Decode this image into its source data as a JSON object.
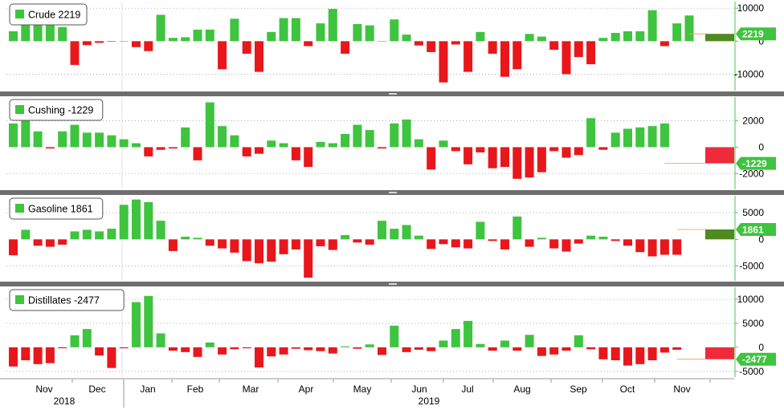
{
  "colors": {
    "positive": "#3ec43e",
    "negative": "#e8171c",
    "positive_current": "#4d8a1f",
    "negative_current": "#ee2b3a",
    "axis": "#4fc44f",
    "separator": "#6e6e6e",
    "grid": "#a0a0a0",
    "text": "#000000"
  },
  "chart_data": [
    {
      "type": "bar",
      "title": "Crude",
      "current_value": 2219,
      "legend": "Crude 2219",
      "yticks": [
        10000,
        0,
        -10000
      ],
      "ylim": [
        -15000,
        12000
      ],
      "values": [
        3000,
        5500,
        5300,
        5000,
        4300,
        -7200,
        -1200,
        -500,
        -100,
        0,
        -1800,
        -3000,
        8000,
        1000,
        1200,
        3500,
        3500,
        -8500,
        6800,
        -3800,
        -9300,
        2800,
        7000,
        7000,
        -1500,
        5400,
        9800,
        -3800,
        5200,
        4800,
        0,
        6600,
        2000,
        -1300,
        -3300,
        -12500,
        -1000,
        -9300,
        2800,
        -3800,
        -10800,
        -8500,
        2200,
        1400,
        -2600,
        -10000,
        -4800,
        -7000,
        1000,
        2500,
        3000,
        3000,
        9400,
        -1500,
        5400,
        7800,
        2219
      ]
    },
    {
      "type": "bar",
      "title": "Cushing",
      "current_value": -1229,
      "legend": "Cushing -1229",
      "yticks": [
        2000,
        0,
        -2000
      ],
      "ylim": [
        -3200,
        3800
      ],
      "values": [
        1800,
        2200,
        1200,
        -100,
        1200,
        1700,
        1100,
        1100,
        900,
        600,
        300,
        -700,
        -200,
        -100,
        1500,
        -1000,
        3400,
        1600,
        900,
        -700,
        -500,
        500,
        300,
        -1000,
        -1500,
        400,
        300,
        1000,
        1700,
        1300,
        -100,
        1800,
        2100,
        600,
        -1700,
        500,
        -300,
        -1300,
        -400,
        -1600,
        -1500,
        -2400,
        -2300,
        -1900,
        -300,
        -800,
        -600,
        2200,
        -200,
        1100,
        1400,
        1500,
        1600,
        1800,
        -1229
      ]
    },
    {
      "type": "bar",
      "title": "Gasoline",
      "current_value": 1861,
      "legend": "Gasoline 1861",
      "yticks": [
        5000,
        0,
        -5000
      ],
      "ylim": [
        -7800,
        8200
      ],
      "values": [
        -3000,
        1800,
        -1200,
        -1400,
        -1000,
        1500,
        1800,
        1500,
        2000,
        6500,
        7500,
        7000,
        3500,
        -2200,
        500,
        300,
        -1200,
        -1700,
        -2500,
        -4100,
        -4500,
        -4200,
        -2800,
        -1900,
        -7200,
        -1300,
        -2000,
        800,
        -600,
        -1000,
        3500,
        2000,
        2700,
        700,
        -1800,
        -900,
        -1500,
        -1700,
        3300,
        -300,
        -1900,
        4300,
        -1400,
        300,
        -1700,
        -2300,
        -800,
        700,
        500,
        -300,
        -1200,
        -2400,
        -3200,
        -2900,
        -2900,
        1861
      ]
    },
    {
      "type": "bar",
      "title": "Distillates",
      "current_value": -2477,
      "legend": "Distillates -2477",
      "yticks": [
        10000,
        5000,
        0,
        -5000
      ],
      "ylim": [
        -6200,
        12500
      ],
      "values": [
        -4000,
        -2700,
        -3500,
        -3300,
        -200,
        2500,
        3800,
        -1700,
        -4300,
        -200,
        9400,
        10700,
        2900,
        -700,
        -1000,
        -2000,
        1000,
        -1500,
        -400,
        -200,
        -4200,
        -1900,
        -1500,
        -300,
        -600,
        -800,
        -1300,
        200,
        -300,
        600,
        -1600,
        4500,
        -1000,
        -500,
        -800,
        1400,
        3800,
        5500,
        700,
        -700,
        1400,
        -700,
        2600,
        -1800,
        -1500,
        -700,
        2500,
        -400,
        -2500,
        -2700,
        -3800,
        -3500,
        -2700,
        -1100,
        -500,
        -2477
      ]
    }
  ],
  "x_axis": {
    "months": [
      "Nov",
      "Dec",
      "Jan",
      "Feb",
      "Mar",
      "Apr",
      "May",
      "Jun",
      "Jul",
      "Aug",
      "Sep",
      "Oct",
      "Nov"
    ],
    "years": [
      "2018",
      "2019"
    ]
  }
}
